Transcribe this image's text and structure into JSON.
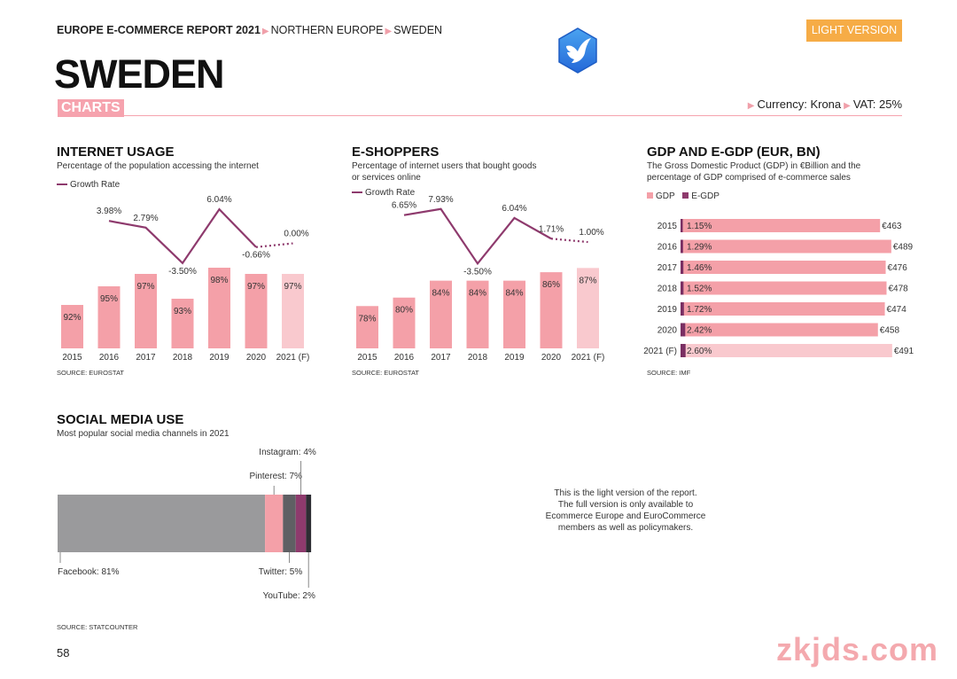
{
  "header": {
    "report": "EUROPE E-COMMERCE REPORT 2021",
    "region": "NORTHERN EUROPE",
    "country": "SWEDEN",
    "light_btn": "LIGHT VERSION",
    "title": "SWEDEN",
    "tag": "CHARTS",
    "currency": "Currency: Krona",
    "vat": "VAT: 25%"
  },
  "colors": {
    "pink": "#f4a0a8",
    "light_pink": "#f9c9ce",
    "purple": "#8e3a6d",
    "dark_purple": "#7a2f63",
    "orange": "#f6ac46",
    "gray": "#9a9a9c",
    "dark_gray": "#5f5f63"
  },
  "logo_icon": "bird-logo-icon",
  "internet": {
    "title": "INTERNET USAGE",
    "subtitle": "Percentage of the population accessing the internet",
    "legend": "Growth Rate",
    "source": "SOURCE: EUROSTAT"
  },
  "eshop": {
    "title": "E-SHOPPERS",
    "subtitle1": "Percentage of internet users that bought goods",
    "subtitle2": "or services online",
    "legend": "Growth Rate",
    "source": "SOURCE: EUROSTAT"
  },
  "gdp": {
    "title": "GDP AND E-GDP (EUR, BN)",
    "subtitle1": "The Gross Domestic Product (GDP) in €Billion and the",
    "subtitle2": "percentage of GDP comprised of e-commerce sales",
    "legend_gdp": "GDP",
    "legend_egdp": "E-GDP",
    "source": "SOURCE: IMF"
  },
  "social": {
    "title": "SOCIAL MEDIA USE",
    "subtitle": "Most popular social media channels in 2021",
    "source": "SOURCE: STATCOUNTER"
  },
  "note": {
    "l1": "This is the light version of the report.",
    "l2": "The full version is only available to",
    "l3": "Ecommerce Europe and EuroCommerce",
    "l4": "members as well as policymakers."
  },
  "page_number": "58",
  "watermark": "zkjds.com",
  "chart_data": [
    {
      "id": "internet_usage",
      "type": "bar",
      "title": "INTERNET USAGE",
      "categories": [
        "2015",
        "2016",
        "2017",
        "2018",
        "2019",
        "2020",
        "2021 (F)"
      ],
      "values": [
        92,
        95,
        97,
        93,
        98,
        97,
        97
      ],
      "value_labels": [
        "92%",
        "95%",
        "97%",
        "93%",
        "98%",
        "97%",
        "97%"
      ],
      "ylim": [
        85,
        100
      ],
      "forecast_index": 6,
      "line": {
        "name": "Growth Rate",
        "values": [
          3.98,
          2.79,
          -3.5,
          6.04,
          -0.66,
          0.0
        ],
        "labels": [
          "3.98%",
          "2.79%",
          "-3.50%",
          "6.04%",
          "-0.66%",
          "0.00%"
        ],
        "x_index": [
          1,
          2,
          3,
          4,
          5,
          6
        ],
        "ylim": [
          -4,
          7
        ]
      }
    },
    {
      "id": "e_shoppers",
      "type": "bar",
      "title": "E-SHOPPERS",
      "categories": [
        "2015",
        "2016",
        "2017",
        "2018",
        "2019",
        "2020",
        "2021 (F)"
      ],
      "values": [
        78,
        80,
        84,
        84,
        84,
        86,
        87
      ],
      "value_labels": [
        "78%",
        "80%",
        "84%",
        "84%",
        "84%",
        "86%",
        "87%"
      ],
      "ylim": [
        68,
        90
      ],
      "forecast_index": 6,
      "line": {
        "name": "Growth Rate",
        "values": [
          6.65,
          7.93,
          -3.5,
          6.04,
          1.71,
          1.0
        ],
        "labels": [
          "6.65%",
          "7.93%",
          "-3.50%",
          "6.04%",
          "1.71%",
          "1.00%"
        ],
        "x_index": [
          1,
          2,
          3,
          4,
          5,
          6
        ],
        "ylim": [
          -4,
          9
        ]
      }
    },
    {
      "id": "gdp",
      "type": "bar",
      "orientation": "horizontal",
      "title": "GDP AND E-GDP (EUR, BN)",
      "categories": [
        "2015",
        "2016",
        "2017",
        "2018",
        "2019",
        "2020",
        "2021 (F)"
      ],
      "gdp": [
        463,
        489,
        476,
        478,
        474,
        458,
        491
      ],
      "gdp_labels": [
        "€463",
        "€489",
        "€476",
        "€478",
        "€474",
        "€458",
        "€491"
      ],
      "egdp_pct": [
        1.15,
        1.29,
        1.46,
        1.52,
        1.72,
        2.42,
        2.6
      ],
      "egdp_labels": [
        "1.15%",
        "1.29%",
        "1.46%",
        "1.52%",
        "1.72%",
        "2.42%",
        "2.60%"
      ],
      "xlim": [
        0,
        500
      ],
      "forecast_index": 6
    },
    {
      "id": "social_media",
      "type": "bar",
      "orientation": "stacked-horizontal",
      "title": "SOCIAL MEDIA USE",
      "segments": [
        {
          "name": "Facebook",
          "value": 81,
          "label": "Facebook: 81%"
        },
        {
          "name": "Pinterest",
          "value": 7,
          "label": "Pinterest: 7%"
        },
        {
          "name": "Twitter",
          "value": 5,
          "label": "Twitter: 5%"
        },
        {
          "name": "Instagram",
          "value": 4,
          "label": "Instagram: 4%"
        },
        {
          "name": "YouTube",
          "value": 2,
          "label": "YouTube: 2%"
        }
      ]
    }
  ]
}
